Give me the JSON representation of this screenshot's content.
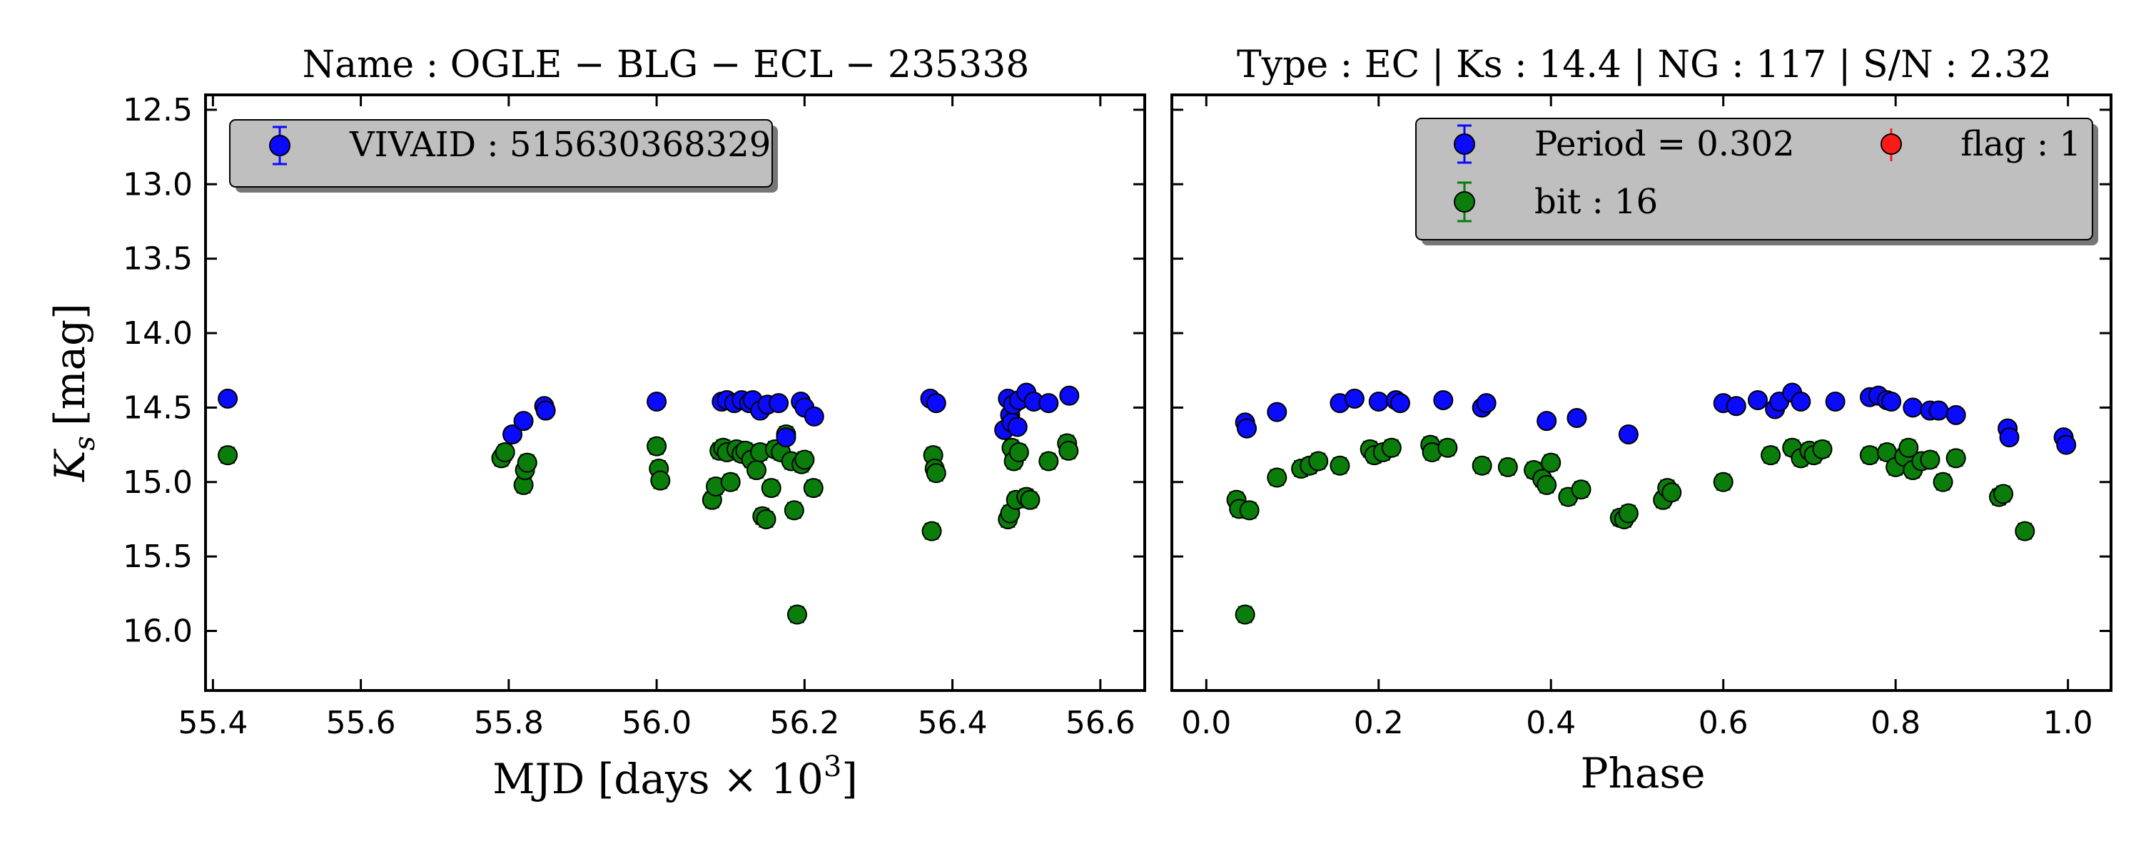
{
  "colors": {
    "blue": "#0a0aff",
    "green": "#0a7d0a",
    "red": "#ff1a1a",
    "legend_bg": "#bfbfbf"
  },
  "chart_data": [
    {
      "type": "scatter",
      "title": "Name : OGLE − BLG − ECL − 235338",
      "xlabel": "MJD [days × 10",
      "xlabel_sup": "3",
      "xlabel_close": "]",
      "ylabel": "K",
      "ylabel_sub": "s",
      "ylabel_unit": "[mag]",
      "xlim": [
        55.39,
        56.66
      ],
      "ylim": [
        16.4,
        12.4
      ],
      "xticks": [
        "55.4",
        "55.6",
        "55.8",
        "56.0",
        "56.2",
        "56.4",
        "56.6"
      ],
      "xtick_values": [
        55.4,
        55.6,
        55.8,
        56.0,
        56.2,
        56.4,
        56.6
      ],
      "yticks": [
        "12.5",
        "13.0",
        "13.5",
        "14.0",
        "14.5",
        "15.0",
        "15.5",
        "16.0"
      ],
      "ytick_values": [
        12.5,
        13.0,
        13.5,
        14.0,
        14.5,
        15.0,
        15.5,
        16.0
      ],
      "legend": [
        {
          "label": "VIVAID : 515630368329",
          "color": "blue"
        }
      ],
      "series": [
        {
          "name": "VIVAID : 515630368329",
          "color": "blue",
          "err": 0.03,
          "x": [
            55.42,
            55.805,
            55.82,
            55.848,
            55.85,
            56.0,
            56.088,
            56.095,
            56.105,
            56.115,
            56.125,
            56.13,
            56.14,
            56.15,
            56.165,
            56.175,
            56.195,
            56.2,
            56.213,
            56.37,
            56.378,
            56.47,
            56.475,
            56.478,
            56.48,
            56.482,
            56.488,
            56.49,
            56.5,
            56.51,
            56.53,
            56.558
          ],
          "y": [
            14.44,
            14.68,
            14.59,
            14.49,
            14.52,
            14.46,
            14.46,
            14.45,
            14.47,
            14.45,
            14.47,
            14.45,
            14.52,
            14.48,
            14.47,
            14.7,
            14.46,
            14.5,
            14.56,
            14.44,
            14.47,
            14.65,
            14.44,
            14.55,
            14.6,
            14.48,
            14.63,
            14.45,
            14.4,
            14.46,
            14.47,
            14.42
          ]
        },
        {
          "name": "bit : 16",
          "color": "green",
          "err": 0.05,
          "x": [
            55.42,
            55.79,
            55.795,
            55.82,
            55.822,
            55.825,
            56.0,
            56.003,
            56.005,
            56.075,
            56.08,
            56.085,
            56.09,
            56.095,
            56.1,
            56.108,
            56.115,
            56.12,
            56.128,
            56.135,
            56.14,
            56.143,
            56.148,
            56.155,
            56.16,
            56.168,
            56.175,
            56.182,
            56.186,
            56.19,
            56.196,
            56.2,
            56.212,
            56.372,
            56.374,
            56.376,
            56.378,
            56.475,
            56.478,
            56.48,
            56.483,
            56.486,
            56.49,
            56.5,
            56.505,
            56.53,
            56.555,
            56.557
          ],
          "y": [
            14.82,
            14.84,
            14.8,
            15.02,
            14.92,
            14.87,
            14.76,
            14.91,
            14.99,
            15.12,
            15.03,
            14.79,
            14.77,
            14.8,
            15.0,
            14.78,
            14.81,
            14.79,
            14.85,
            14.92,
            14.8,
            15.23,
            15.25,
            15.04,
            14.78,
            14.8,
            14.68,
            14.86,
            15.19,
            15.89,
            14.88,
            14.85,
            15.04,
            15.33,
            14.82,
            14.91,
            14.94,
            15.25,
            15.21,
            14.77,
            14.86,
            15.12,
            14.8,
            15.1,
            15.12,
            14.86,
            14.74,
            14.79
          ]
        }
      ]
    },
    {
      "type": "scatter",
      "title": "Type : EC | Ks : 14.4 | NG : 117 | S/N : 2.32",
      "xlabel": "Phase",
      "xlim": [
        -0.04,
        1.05
      ],
      "ylim": [
        16.4,
        12.4
      ],
      "xticks": [
        "0.0",
        "0.2",
        "0.4",
        "0.6",
        "0.8",
        "1.0"
      ],
      "xtick_values": [
        0.0,
        0.2,
        0.4,
        0.6,
        0.8,
        1.0
      ],
      "ytick_values": [
        12.5,
        13.0,
        13.5,
        14.0,
        14.5,
        15.0,
        15.5,
        16.0
      ],
      "legend": [
        {
          "label": "Period = 0.302",
          "color": "blue"
        },
        {
          "label": "bit :  16",
          "color": "green"
        },
        {
          "label": "flag :  1",
          "color": "red"
        }
      ],
      "series": [
        {
          "name": "Period = 0.302",
          "color": "blue",
          "err": 0.03,
          "x": [
            0.045,
            0.047,
            0.082,
            0.155,
            0.172,
            0.2,
            0.22,
            0.225,
            0.275,
            0.32,
            0.325,
            0.395,
            0.43,
            0.49,
            0.6,
            0.615,
            0.64,
            0.66,
            0.665,
            0.68,
            0.69,
            0.73,
            0.77,
            0.78,
            0.79,
            0.795,
            0.82,
            0.84,
            0.85,
            0.87,
            0.93,
            0.932,
            0.995,
            0.998
          ],
          "y": [
            14.6,
            14.64,
            14.53,
            14.47,
            14.44,
            14.46,
            14.45,
            14.47,
            14.45,
            14.5,
            14.47,
            14.59,
            14.57,
            14.68,
            14.47,
            14.49,
            14.45,
            14.51,
            14.46,
            14.4,
            14.46,
            14.46,
            14.43,
            14.42,
            14.45,
            14.46,
            14.5,
            14.52,
            14.52,
            14.55,
            14.64,
            14.7,
            14.7,
            14.75
          ]
        },
        {
          "name": "bit :  16",
          "color": "green",
          "err": 0.05,
          "x": [
            0.035,
            0.038,
            0.045,
            0.05,
            0.082,
            0.11,
            0.12,
            0.13,
            0.155,
            0.19,
            0.195,
            0.205,
            0.215,
            0.26,
            0.262,
            0.28,
            0.32,
            0.35,
            0.38,
            0.39,
            0.395,
            0.4,
            0.42,
            0.435,
            0.48,
            0.485,
            0.49,
            0.53,
            0.535,
            0.54,
            0.6,
            0.655,
            0.68,
            0.69,
            0.7,
            0.705,
            0.715,
            0.77,
            0.79,
            0.8,
            0.81,
            0.815,
            0.82,
            0.83,
            0.84,
            0.855,
            0.87,
            0.92,
            0.925,
            0.95
          ],
          "y": [
            15.12,
            15.18,
            15.89,
            15.19,
            14.97,
            14.91,
            14.89,
            14.86,
            14.89,
            14.78,
            14.82,
            14.8,
            14.77,
            14.75,
            14.8,
            14.77,
            14.89,
            14.9,
            14.92,
            14.98,
            15.02,
            14.87,
            15.1,
            15.05,
            15.24,
            15.25,
            15.21,
            15.12,
            15.04,
            15.07,
            15.0,
            14.82,
            14.77,
            14.84,
            14.79,
            14.82,
            14.78,
            14.82,
            14.8,
            14.9,
            14.83,
            14.77,
            14.92,
            14.86,
            14.85,
            15.0,
            14.84,
            15.1,
            15.08,
            15.33
          ]
        }
      ]
    }
  ]
}
